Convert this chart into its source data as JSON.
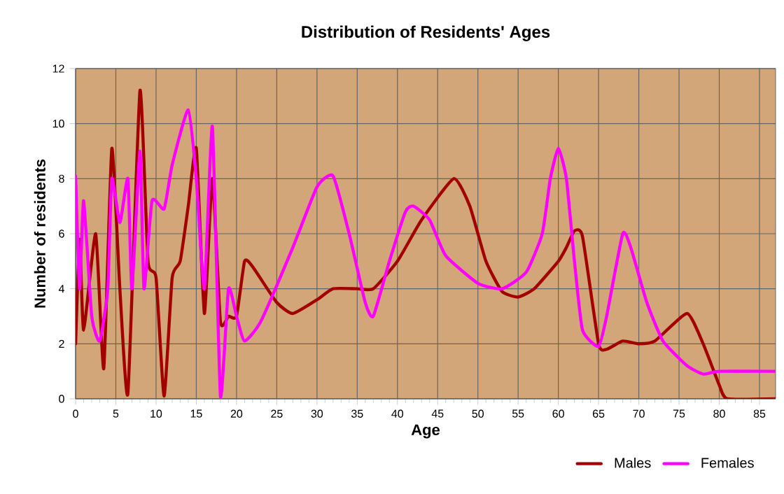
{
  "chart_data": {
    "type": "line",
    "title": "Distribution of Residents' Ages",
    "xlabel": "Age",
    "ylabel": "Number of residents",
    "xlim": [
      0,
      87
    ],
    "xticks": [
      0,
      5,
      10,
      15,
      20,
      25,
      30,
      35,
      40,
      45,
      50,
      55,
      60,
      65,
      70,
      75,
      80,
      85
    ],
    "ylim": [
      0,
      12
    ],
    "yticks": [
      0,
      2,
      4,
      6,
      8,
      10,
      12
    ],
    "grid": true,
    "legend": "bottom right",
    "marker": "none",
    "series": [
      {
        "name": "Males",
        "color": "#a30000",
        "x": [
          0,
          0.5,
          1,
          2.5,
          3.5,
          4.5,
          5.5,
          6.5,
          8,
          9,
          10,
          11,
          12,
          13,
          14,
          15,
          16,
          17,
          18,
          19,
          20,
          21,
          22,
          25,
          27,
          30,
          32,
          35,
          37,
          40,
          43,
          47,
          49,
          51,
          53,
          55,
          57,
          60,
          61,
          62,
          63,
          65,
          66,
          68,
          70,
          72,
          76,
          78,
          80,
          81,
          87
        ],
        "values": [
          2,
          5.8,
          2.5,
          6,
          1.1,
          9.1,
          4,
          0.2,
          11.2,
          5,
          4.4,
          0.1,
          4.4,
          5,
          7,
          9.1,
          3.1,
          8,
          2.8,
          3,
          3,
          5,
          4.8,
          3.5,
          3.1,
          3.6,
          4,
          4,
          4,
          5,
          6.5,
          8,
          7,
          5,
          3.9,
          3.7,
          4,
          5,
          5.5,
          6.1,
          5.9,
          2,
          1.8,
          2.1,
          2,
          2.1,
          3.1,
          2,
          0.5,
          0,
          0
        ]
      },
      {
        "name": "Females",
        "color": "#ff00ff",
        "x": [
          0,
          0.5,
          1,
          2,
          3,
          4,
          4.5,
          5.5,
          6.5,
          7,
          8,
          8.5,
          9.5,
          11,
          12,
          14,
          15,
          16,
          17,
          18,
          19,
          20,
          21,
          23,
          27,
          30,
          32,
          34,
          36,
          37,
          39,
          41,
          42,
          44,
          46,
          50,
          53,
          56,
          58,
          59,
          60,
          61,
          62,
          63,
          65,
          66,
          68,
          69,
          71,
          73,
          76,
          78,
          80,
          87
        ],
        "values": [
          8.1,
          4,
          7.2,
          3,
          2.1,
          4,
          8,
          6.4,
          8,
          4,
          9,
          4,
          7.2,
          6.9,
          8.5,
          10.5,
          8,
          4,
          9.9,
          0.1,
          4,
          3,
          2.1,
          2.8,
          5.5,
          7.7,
          8.1,
          6,
          3.5,
          3,
          5,
          6.8,
          7,
          6.5,
          5.2,
          4.2,
          4,
          4.6,
          6,
          8,
          9.1,
          8,
          5,
          2.5,
          1.9,
          3,
          6,
          5.5,
          3.5,
          2.1,
          1.2,
          0.9,
          1,
          1
        ]
      }
    ]
  }
}
